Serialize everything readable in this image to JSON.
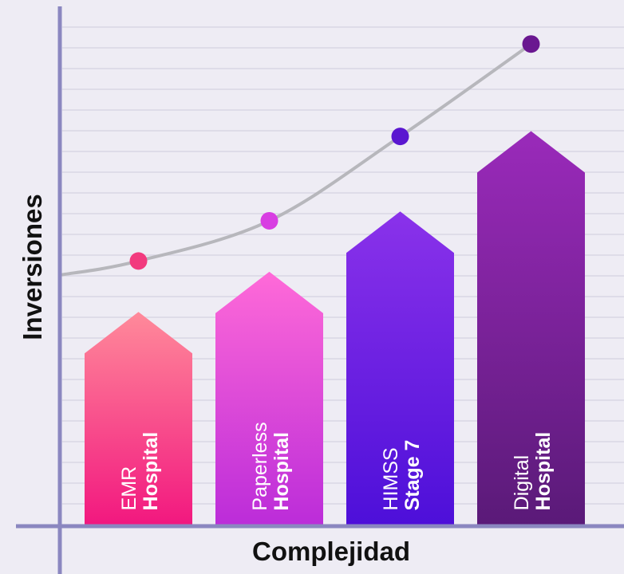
{
  "chart_data": {
    "type": "bar",
    "xlabel": "Complejidad",
    "ylabel": "Inversiones",
    "bars": [
      {
        "line1": "EMR",
        "line2": "Hospital",
        "value": 4.3,
        "colors": [
          "#ff8a9a",
          "#f2177f"
        ]
      },
      {
        "line1": "Paperless",
        "line2": "Hospital",
        "value": 5.3,
        "colors": [
          "#ff6ad8",
          "#bb2cd9"
        ]
      },
      {
        "line1": "HIMSS",
        "line2": "Stage 7",
        "value": 6.8,
        "colors": [
          "#8a32ea",
          "#4d0fd9"
        ]
      },
      {
        "line1": "Digital",
        "line2": "Hospital",
        "value": 8.8,
        "colors": [
          "#9a2aba",
          "#5a1a78"
        ]
      }
    ],
    "curve": {
      "points": [
        {
          "x": 1,
          "y": 6.6,
          "color": "#f23a7e"
        },
        {
          "x": 2,
          "y": 7.6,
          "color": "#d83ee2"
        },
        {
          "x": 3,
          "y": 9.7,
          "color": "#5a16d0"
        },
        {
          "x": 4,
          "y": 12.0,
          "color": "#6a1790"
        }
      ]
    },
    "ylim": [
      0,
      12.5
    ],
    "grid": true
  }
}
